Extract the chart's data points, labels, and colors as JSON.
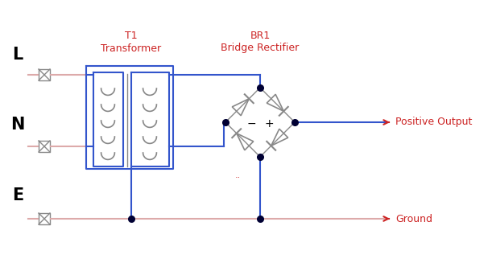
{
  "bg_color": "#ffffff",
  "blue": "#3355cc",
  "red": "#cc2222",
  "gray": "#888888",
  "dark_blue": "#000033",
  "pink": "#ddaaaa",
  "title_t1": "T1",
  "title_t1_sub": "Transformer",
  "title_br1": "BR1",
  "title_br1_sub": "Bridge Rectifier",
  "label_L": "L",
  "label_N": "N",
  "label_E": "E",
  "label_pos": "Positive Output",
  "label_gnd": "Ground",
  "dots_note": "..",
  "figw": 6.11,
  "figh": 3.32,
  "dpi": 100
}
